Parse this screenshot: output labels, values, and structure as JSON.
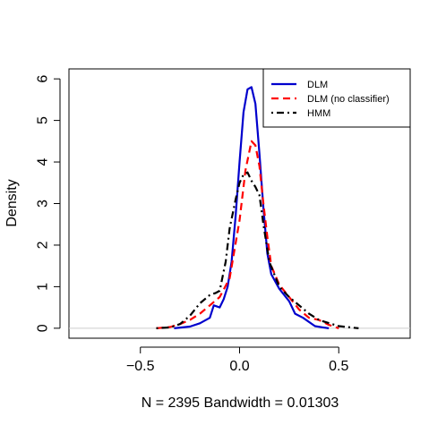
{
  "chart_data": {
    "type": "line",
    "title": "",
    "xlabel": "N = 2395   Bandwidth = 0.01303",
    "ylabel": "Density",
    "xlim": [
      -0.86,
      0.86
    ],
    "ylim": [
      -0.24,
      6.24
    ],
    "x_ticks": [
      -0.5,
      0.0,
      0.5
    ],
    "x_tick_labels": [
      "−0.5",
      "0.0",
      "0.5"
    ],
    "y_ticks": [
      0,
      1,
      2,
      3,
      4,
      5,
      6
    ],
    "y_tick_labels": [
      "0",
      "1",
      "2",
      "3",
      "4",
      "5",
      "6"
    ],
    "grid": false,
    "baseline_y": 0,
    "legend_position": "top-right",
    "series": [
      {
        "name": "DLM",
        "color": "#0000CD",
        "line_style": "solid",
        "x": [
          -0.33,
          -0.25,
          -0.2,
          -0.15,
          -0.13,
          -0.1,
          -0.08,
          -0.06,
          -0.04,
          -0.02,
          0.0,
          0.02,
          0.04,
          0.06,
          0.08,
          0.1,
          0.12,
          0.14,
          0.16,
          0.2,
          0.25,
          0.28,
          0.32,
          0.38,
          0.42,
          0.45
        ],
        "y": [
          0.0,
          0.04,
          0.12,
          0.25,
          0.55,
          0.5,
          0.7,
          1.0,
          1.6,
          2.7,
          4.0,
          5.2,
          5.75,
          5.8,
          5.4,
          4.2,
          2.9,
          1.8,
          1.3,
          0.95,
          0.65,
          0.35,
          0.25,
          0.05,
          0.02,
          0.0
        ]
      },
      {
        "name": "DLM (no classifier)",
        "color": "#FF0000",
        "line_style": "dashed",
        "x": [
          -0.42,
          -0.35,
          -0.3,
          -0.25,
          -0.2,
          -0.15,
          -0.1,
          -0.05,
          0.0,
          0.03,
          0.06,
          0.08,
          0.1,
          0.12,
          0.14,
          0.16,
          0.2,
          0.25,
          0.3,
          0.35,
          0.4,
          0.45,
          0.5
        ],
        "y": [
          0.0,
          0.03,
          0.1,
          0.2,
          0.35,
          0.55,
          0.75,
          1.2,
          2.6,
          3.8,
          4.5,
          4.4,
          3.9,
          3.0,
          2.2,
          1.5,
          1.05,
          0.75,
          0.45,
          0.25,
          0.2,
          0.08,
          0.0
        ]
      },
      {
        "name": "HMM",
        "color": "#000000",
        "line_style": "dotdash",
        "x": [
          -0.42,
          -0.35,
          -0.3,
          -0.25,
          -0.2,
          -0.15,
          -0.12,
          -0.1,
          -0.07,
          -0.05,
          -0.02,
          0.0,
          0.02,
          0.04,
          0.06,
          0.08,
          0.1,
          0.12,
          0.15,
          0.2,
          0.25,
          0.3,
          0.35,
          0.4,
          0.5,
          0.6
        ],
        "y": [
          0.0,
          0.02,
          0.1,
          0.3,
          0.6,
          0.8,
          0.85,
          0.9,
          1.6,
          2.4,
          3.1,
          3.5,
          3.7,
          3.75,
          3.55,
          3.4,
          3.2,
          2.5,
          1.6,
          1.0,
          0.75,
          0.55,
          0.35,
          0.2,
          0.05,
          0.0
        ]
      }
    ]
  }
}
